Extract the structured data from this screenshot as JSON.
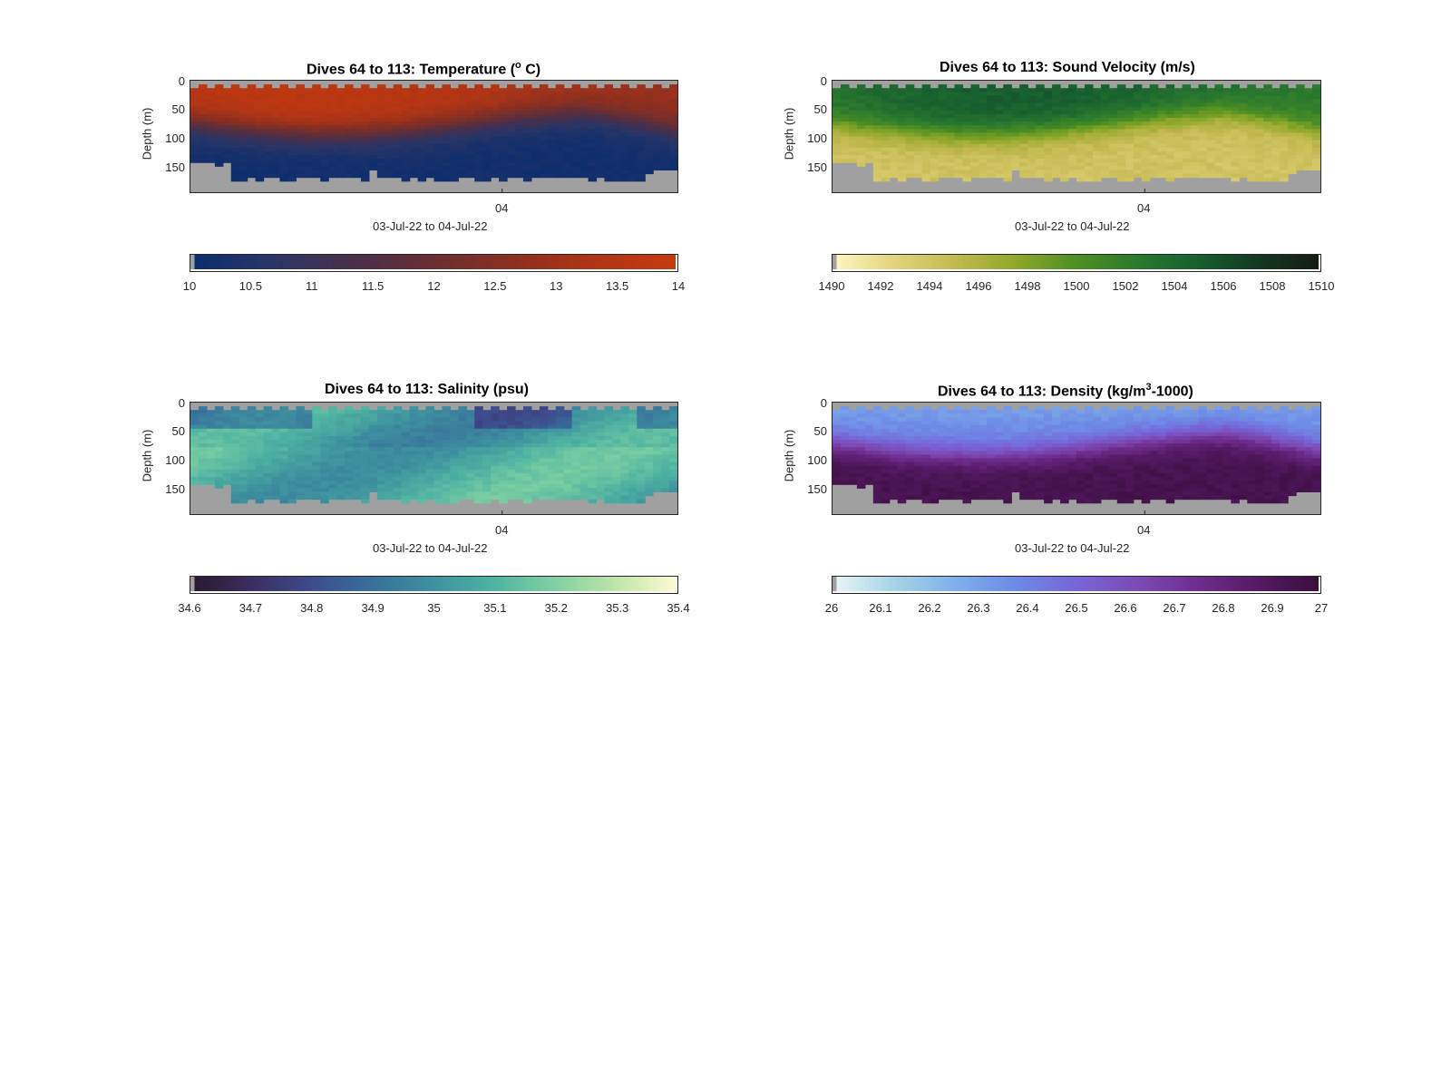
{
  "chart_data": [
    {
      "type": "heatmap",
      "title_parts": [
        "Dives 64 to 113: Temperature (",
        "o",
        " C)"
      ],
      "ylabel": "Depth (m)",
      "yticks": [
        "0",
        "50",
        "100",
        "150"
      ],
      "xtick": "04",
      "xlabel": "03-Jul-22 to 04-Jul-22",
      "colorbar_ticks": [
        "10",
        "10.5",
        "11",
        "11.5",
        "12",
        "12.5",
        "13",
        "13.5",
        "14"
      ],
      "clim": [
        10,
        14
      ],
      "colormap": [
        "#0b2d6e",
        "#2a3566",
        "#4a2f4a",
        "#6a2e32",
        "#8c2f20",
        "#b03515",
        "#c63a0f"
      ],
      "profile": "temperature"
    },
    {
      "type": "heatmap",
      "title_parts": [
        "Dives 64 to 113: Sound Velocity (m/s)"
      ],
      "ylabel": "Depth (m)",
      "yticks": [
        "0",
        "50",
        "100",
        "150"
      ],
      "xtick": "04",
      "xlabel": "03-Jul-22 to 04-Jul-22",
      "colorbar_ticks": [
        "1490",
        "1492",
        "1494",
        "1496",
        "1498",
        "1500",
        "1502",
        "1504",
        "1506",
        "1508",
        "1510"
      ],
      "clim": [
        1490,
        1510
      ],
      "colormap": [
        "#fdf6c0",
        "#e3d37d",
        "#c3b950",
        "#8fa82a",
        "#4f8f23",
        "#2b7a2e",
        "#17602f",
        "#133a22",
        "#141d14"
      ],
      "profile": "sound"
    },
    {
      "type": "heatmap",
      "title_parts": [
        "Dives 64 to 113: Salinity (psu)"
      ],
      "ylabel": "Depth (m)",
      "yticks": [
        "0",
        "50",
        "100",
        "150"
      ],
      "xtick": "04",
      "xlabel": "03-Jul-22 to 04-Jul-22",
      "colorbar_ticks": [
        "34.6",
        "34.7",
        "34.8",
        "34.9",
        "35",
        "35.1",
        "35.2",
        "35.3",
        "35.4"
      ],
      "clim": [
        34.6,
        35.4
      ],
      "colormap": [
        "#281a2d",
        "#3c2e62",
        "#3d4c8d",
        "#38709a",
        "#3e919f",
        "#4fb3a2",
        "#7fd0a2",
        "#bde4a8",
        "#fbf9d2"
      ],
      "profile": "salinity"
    },
    {
      "type": "heatmap",
      "title_parts": [
        "Dives 64 to 113: Density (kg/m",
        "3",
        "-1000)"
      ],
      "ylabel": "Depth (m)",
      "yticks": [
        "0",
        "50",
        "100",
        "150"
      ],
      "xtick": "04",
      "xlabel": "03-Jul-22 to 04-Jul-22",
      "colorbar_ticks": [
        "26",
        "26.1",
        "26.2",
        "26.3",
        "26.4",
        "26.5",
        "26.6",
        "26.7",
        "26.8",
        "26.9",
        "27"
      ],
      "clim": [
        26,
        27
      ],
      "colormap": [
        "#e8f5f7",
        "#a6d3e6",
        "#7fb1ea",
        "#6e8ae6",
        "#7766d8",
        "#7c4bb6",
        "#6f2e8f",
        "#561a66",
        "#3b0f3e"
      ],
      "profile": "density"
    }
  ]
}
